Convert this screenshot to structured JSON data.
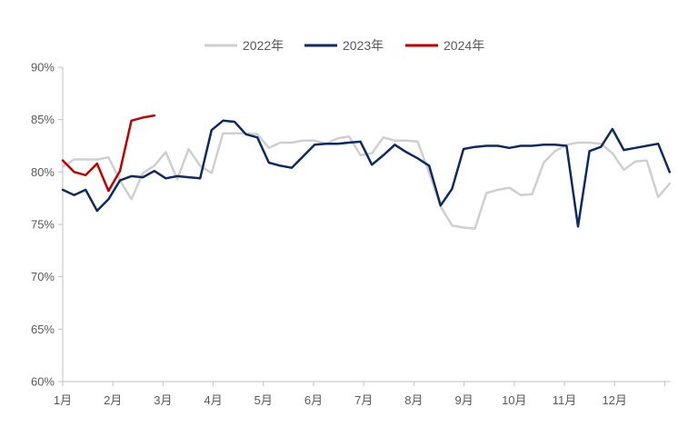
{
  "chart_data": {
    "type": "line",
    "legend_position": "top-center",
    "grid": false,
    "ylim": [
      0.6,
      0.9
    ],
    "yticks": [
      "90%",
      "85%",
      "80%",
      "75%",
      "70%",
      "65%",
      "60%"
    ],
    "ytick_values": [
      0.9,
      0.85,
      0.8,
      0.75,
      0.7,
      0.65,
      0.6
    ],
    "months": [
      "1月",
      "2月",
      "3月",
      "4月",
      "5月",
      "6月",
      "7月",
      "8月",
      "9月",
      "10月",
      "11月",
      "12月"
    ],
    "x_unit": "week",
    "xlim": [
      1,
      52
    ],
    "series": [
      {
        "name": "2022年",
        "color": "#cfcfcf",
        "values": [
          0.805,
          0.812,
          0.812,
          0.812,
          0.814,
          0.792,
          0.774,
          0.799,
          0.806,
          0.819,
          0.793,
          0.822,
          0.806,
          0.799,
          0.837,
          0.837,
          0.837,
          0.836,
          0.823,
          0.828,
          0.828,
          0.83,
          0.83,
          0.827,
          0.832,
          0.834,
          0.816,
          0.818,
          0.833,
          0.83,
          0.83,
          0.829,
          0.799,
          0.767,
          0.749,
          0.747,
          0.746,
          0.78,
          0.783,
          0.785,
          0.778,
          0.779,
          0.809,
          0.82,
          0.826,
          0.828,
          0.828,
          0.827,
          0.818,
          0.802,
          0.81,
          0.811,
          0.776,
          0.789
        ]
      },
      {
        "name": "2023年",
        "color": "#0d2a63",
        "values": [
          0.783,
          0.778,
          0.783,
          0.763,
          0.774,
          0.792,
          0.796,
          0.795,
          0.801,
          0.794,
          0.796,
          0.795,
          0.794,
          0.84,
          0.849,
          0.848,
          0.836,
          0.833,
          0.809,
          0.806,
          0.804,
          0.815,
          0.826,
          0.827,
          0.827,
          0.828,
          0.829,
          0.807,
          0.816,
          0.826,
          0.819,
          0.813,
          0.806,
          0.768,
          0.784,
          0.822,
          0.824,
          0.825,
          0.825,
          0.823,
          0.825,
          0.825,
          0.826,
          0.826,
          0.825,
          0.748,
          0.82,
          0.824,
          0.841,
          0.821,
          0.823,
          0.825,
          0.827,
          0.8
        ]
      },
      {
        "name": "2024年",
        "color": "#c00000",
        "values": [
          0.811,
          0.8,
          0.797,
          0.808,
          0.782,
          0.801,
          0.849,
          0.852,
          0.854
        ]
      }
    ]
  }
}
